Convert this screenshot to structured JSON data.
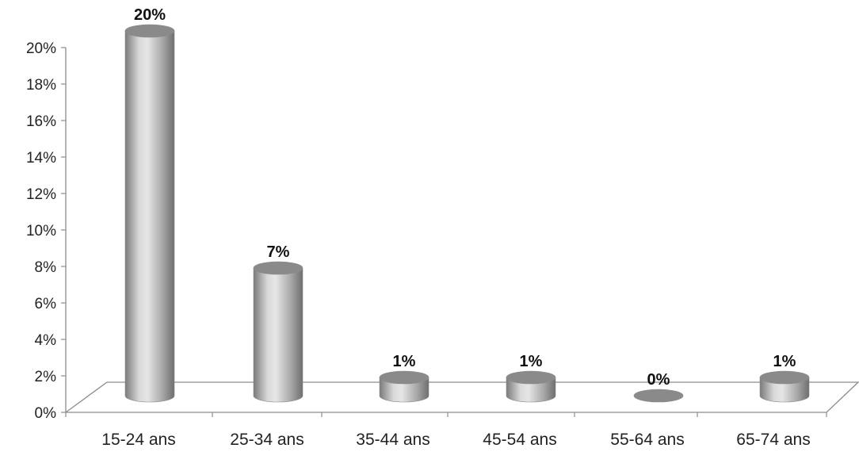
{
  "chart_data": {
    "type": "bar",
    "style": "3d-cylinder",
    "title": "",
    "xlabel": "",
    "ylabel": "",
    "categories": [
      "15-24 ans",
      "25-34 ans",
      "35-44 ans",
      "45-54 ans",
      "55-64 ans",
      "65-74 ans"
    ],
    "values": [
      20,
      7,
      1,
      1,
      0,
      1
    ],
    "data_labels": [
      "20%",
      "7%",
      "1%",
      "1%",
      "0%",
      "1%"
    ],
    "ylim": [
      0,
      20
    ],
    "yticks": [
      "0%",
      "2%",
      "4%",
      "6%",
      "8%",
      "10%",
      "12%",
      "14%",
      "16%",
      "18%",
      "20%"
    ],
    "grid": false,
    "legend": "none",
    "colors": {
      "bar": "#a6a6a6",
      "bar_top": "#8a8a8a",
      "axis": "#8c8c8c",
      "text": "#222222"
    }
  }
}
